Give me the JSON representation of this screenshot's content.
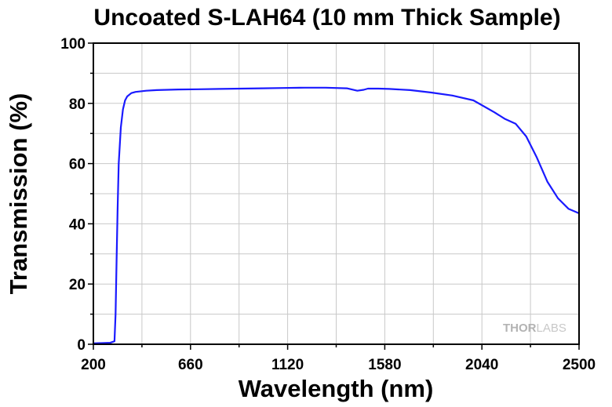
{
  "chart_data": {
    "type": "line",
    "title": "Uncoated S-LAH64 (10 mm Thick Sample)",
    "xlabel": "Wavelength (nm)",
    "ylabel": "Transmission (%)",
    "xlim": [
      200,
      2500
    ],
    "ylim": [
      0,
      100
    ],
    "xticks": [
      200,
      660,
      1120,
      1580,
      2040,
      2500
    ],
    "yticks": [
      0,
      20,
      40,
      60,
      80,
      100
    ],
    "grid": true,
    "series": [
      {
        "color": "#1a1aff",
        "x": [
          200,
          280,
          300,
          305,
          310,
          315,
          320,
          330,
          340,
          350,
          360,
          380,
          400,
          450,
          500,
          600,
          700,
          800,
          900,
          1000,
          1100,
          1200,
          1300,
          1400,
          1450,
          1480,
          1500,
          1550,
          1600,
          1700,
          1800,
          1900,
          2000,
          2100,
          2150,
          2200,
          2250,
          2300,
          2350,
          2400,
          2450,
          2500
        ],
        "y": [
          0.3,
          0.5,
          1,
          10,
          28,
          45,
          60,
          72,
          78,
          81,
          82.3,
          83.4,
          83.8,
          84.2,
          84.4,
          84.6,
          84.7,
          84.8,
          84.9,
          85.0,
          85.1,
          85.2,
          85.2,
          85.0,
          84.2,
          84.5,
          84.9,
          84.9,
          84.8,
          84.4,
          83.6,
          82.6,
          81.0,
          77.0,
          74.8,
          73.2,
          69.0,
          62.0,
          54.0,
          48.5,
          45.0,
          43.5
        ]
      }
    ]
  },
  "watermark": {
    "part1": "THOR",
    "part2": "LABS"
  }
}
